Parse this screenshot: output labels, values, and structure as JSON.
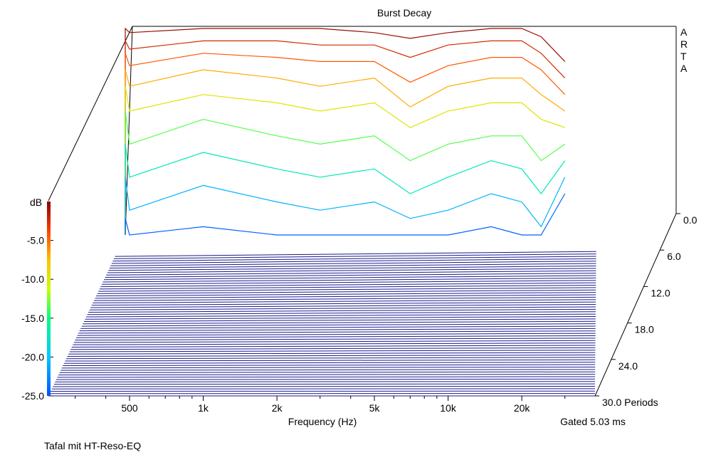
{
  "chart_data": {
    "type": "waterfall",
    "title": "Burst Decay",
    "brand": "ARTA",
    "xlabel": "Frequency (Hz)",
    "x_ticks": [
      "500",
      "1k",
      "2k",
      "5k",
      "10k",
      "20k"
    ],
    "z_ticks": [
      "0.0",
      "6.0",
      "12.0",
      "18.0",
      "24.0",
      "30.0 Periods"
    ],
    "zlabel": "Periods",
    "zlim": [
      0,
      30
    ],
    "colorbar_title": "dB",
    "colorbar_ticks": [
      "-5.0",
      "-10.0",
      "-15.0",
      "-20.0",
      "-25.0"
    ],
    "ylim": [
      -25,
      0
    ],
    "gated": "Gated 5.03 ms",
    "caption": "Tafal mit HT-Reso-EQ",
    "colors": {
      "high": "#8b0000",
      "mid": "#ffff00",
      "low": "#0070ff",
      "floor": "#1a1a8c"
    },
    "series": [
      {
        "period": 0,
        "x": [
          200,
          500,
          1000,
          2000,
          3000,
          5000,
          7000,
          10000,
          15000,
          20000,
          24000,
          30000
        ],
        "y": [
          0,
          -0.5,
          0,
          0,
          0,
          -0.5,
          -1.2,
          -0.5,
          0,
          0,
          -1,
          -4
        ]
      },
      {
        "period": 1,
        "x": [
          200,
          500,
          1000,
          2000,
          3000,
          5000,
          7000,
          10000,
          15000,
          20000,
          24000,
          30000
        ],
        "y": [
          -1.5,
          -2.5,
          -1.5,
          -1.5,
          -2,
          -2,
          -3.5,
          -2,
          -1.5,
          -1.5,
          -3,
          -6
        ]
      },
      {
        "period": 2,
        "x": [
          200,
          500,
          1000,
          2000,
          3000,
          5000,
          7000,
          10000,
          15000,
          20000,
          24000,
          30000
        ],
        "y": [
          -3,
          -4.5,
          -3,
          -3.5,
          -4,
          -4,
          -6.5,
          -4.5,
          -3.5,
          -3.5,
          -5,
          -8
        ]
      },
      {
        "period": 3,
        "x": [
          200,
          500,
          1000,
          2000,
          3000,
          5000,
          7000,
          10000,
          15000,
          20000,
          24000,
          30000
        ],
        "y": [
          -5,
          -7,
          -5,
          -6,
          -7,
          -6,
          -9.5,
          -7,
          -6,
          -6,
          -8,
          -10
        ]
      },
      {
        "period": 4,
        "x": [
          200,
          500,
          1000,
          2000,
          3000,
          5000,
          7000,
          10000,
          15000,
          20000,
          24000,
          30000
        ],
        "y": [
          -7,
          -10,
          -8,
          -9,
          -10,
          -9,
          -12,
          -10,
          -9,
          -9,
          -11,
          -12
        ]
      },
      {
        "period": 5,
        "x": [
          200,
          500,
          1000,
          2000,
          3000,
          5000,
          7000,
          10000,
          15000,
          20000,
          24000,
          30000
        ],
        "y": [
          -10,
          -14,
          -11,
          -13,
          -14,
          -13,
          -16,
          -14,
          -13,
          -13,
          -16,
          -14
        ]
      },
      {
        "period": 6,
        "x": [
          200,
          500,
          1000,
          2000,
          3000,
          5000,
          7000,
          10000,
          15000,
          20000,
          24000,
          30000
        ],
        "y": [
          -14,
          -18,
          -15,
          -17,
          -18,
          -17,
          -20,
          -18,
          -16,
          -17,
          -20,
          -16
        ]
      },
      {
        "period": 7,
        "x": [
          200,
          500,
          1000,
          2000,
          3000,
          5000,
          7000,
          10000,
          15000,
          20000,
          24000,
          30000
        ],
        "y": [
          -18,
          -22,
          -19,
          -21,
          -22,
          -21,
          -23,
          -22,
          -20,
          -21,
          -24,
          -18
        ]
      },
      {
        "period": 8,
        "x": [
          200,
          500,
          1000,
          2000,
          3000,
          5000,
          7000,
          10000,
          15000,
          20000,
          24000,
          30000
        ],
        "y": [
          -23,
          -25,
          -24,
          -25,
          -25,
          -25,
          -25,
          -25,
          -24,
          -25,
          -25,
          -20
        ]
      }
    ]
  }
}
